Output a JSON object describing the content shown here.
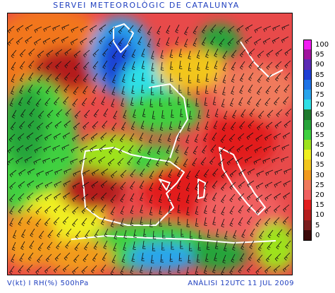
{
  "header": {
    "title": "SERVEI METEOROLÒGIC DE CATALUNYA"
  },
  "footer": {
    "variables": "V(kt) I RH(%) 500hPa",
    "analysis": "ANÀLISI 12UTC 11 JUL 2009"
  },
  "legend": {
    "entries": [
      {
        "label": "100",
        "color": "#f21cf2"
      },
      {
        "label": "95",
        "color": "#a0149e"
      },
      {
        "label": "90",
        "color": "#5b2bb4"
      },
      {
        "label": "85",
        "color": "#1f3fd4"
      },
      {
        "label": "80",
        "color": "#1e73e6"
      },
      {
        "label": "75",
        "color": "#2aa5ec"
      },
      {
        "label": "70",
        "color": "#2fe0e6"
      },
      {
        "label": "65",
        "color": "#1f7a2e"
      },
      {
        "label": "60",
        "color": "#27a43a"
      },
      {
        "label": "55",
        "color": "#3fd03f"
      },
      {
        "label": "45",
        "color": "#9ee21e"
      },
      {
        "label": "40",
        "color": "#f0f020"
      },
      {
        "label": "35",
        "color": "#f2c61e"
      },
      {
        "label": "30",
        "color": "#f29a1e"
      },
      {
        "label": "25",
        "color": "#f07a5c"
      },
      {
        "label": "20",
        "color": "#f06060"
      },
      {
        "label": "15",
        "color": "#e21e1e"
      },
      {
        "label": "10",
        "color": "#b41e1e"
      },
      {
        "label": "5",
        "color": "#7a1e1e"
      },
      {
        "label": "0",
        "color": "#3c0a0a"
      }
    ]
  }
}
